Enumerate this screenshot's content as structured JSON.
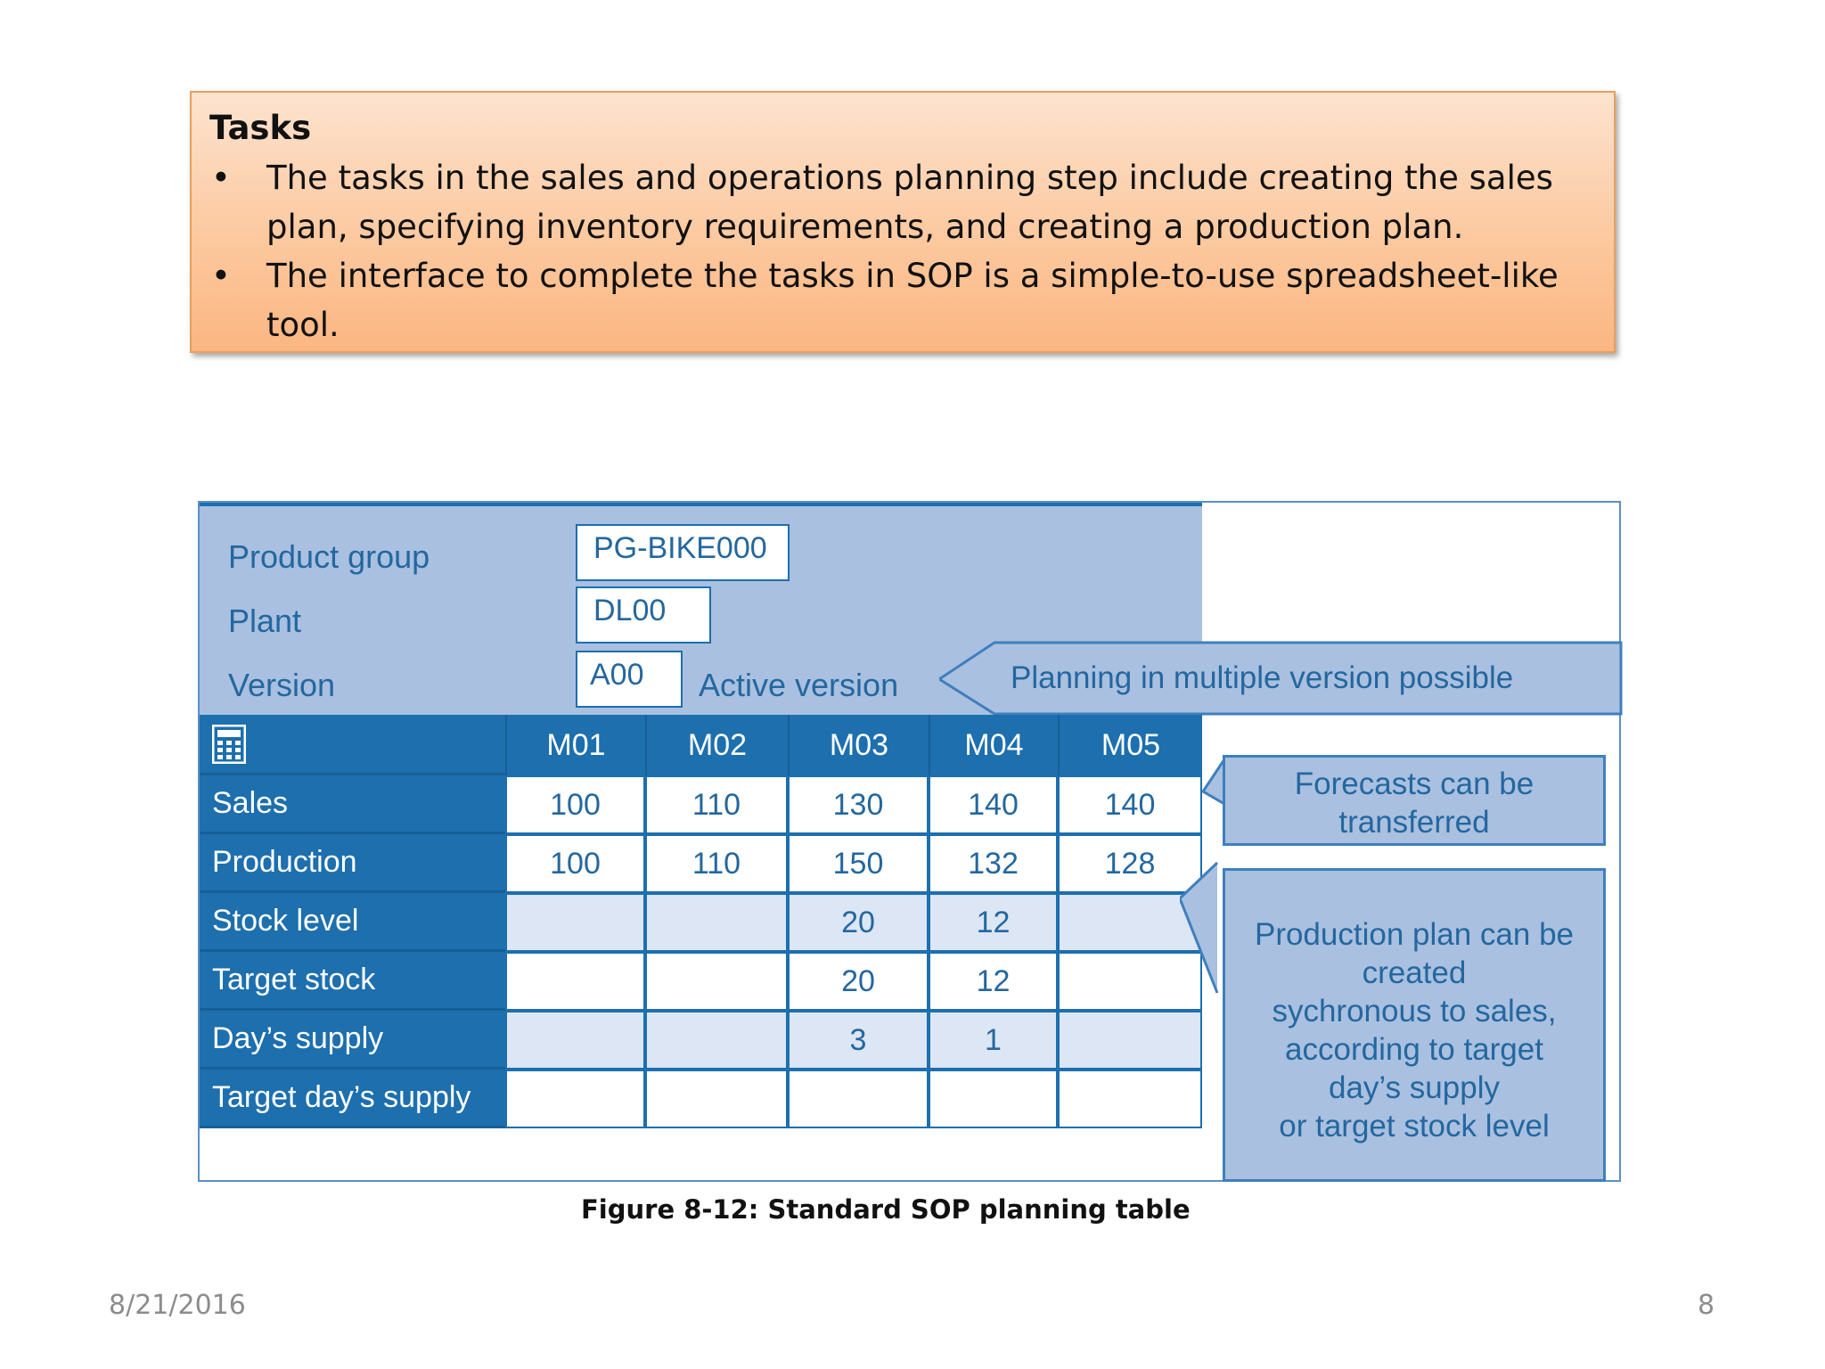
{
  "tasks": {
    "title": "Tasks",
    "bullet_char": "•",
    "items": [
      "The tasks in the sales and operations planning step include creating the sales plan, specifying inventory requirements, and creating a production plan.",
      "The interface to complete the tasks in SOP is a simple-to-use spreadsheet-like tool."
    ]
  },
  "figure": {
    "fields": [
      {
        "label": "Product group",
        "value": "PG-BIKE000"
      },
      {
        "label": "Plant",
        "value": "DL00"
      },
      {
        "label": "Version",
        "value": "A00"
      }
    ],
    "active_version": "Active version",
    "callout_version": "Planning in multiple version possible",
    "calculator_icon": "calculator-icon",
    "columns": [
      "M01",
      "M02",
      "M03",
      "M04",
      "M05"
    ],
    "rows": [
      {
        "label": "Sales",
        "values": [
          "100",
          "110",
          "130",
          "140",
          "140"
        ]
      },
      {
        "label": "Production",
        "values": [
          "100",
          "110",
          "150",
          "132",
          "128"
        ]
      },
      {
        "label": "Stock level",
        "values": [
          "",
          "",
          "20",
          "12",
          ""
        ]
      },
      {
        "label": "Target stock",
        "values": [
          "",
          "",
          "20",
          "12",
          ""
        ]
      },
      {
        "label": "Day’s supply",
        "values": [
          "",
          "",
          "3",
          "1",
          ""
        ]
      },
      {
        "label": "Target day’s supply",
        "values": [
          "",
          "",
          "",
          "",
          ""
        ]
      }
    ],
    "callout_forecast": [
      "Forecasts can be",
      "transferred"
    ],
    "callout_production": [
      "Production plan can be",
      "created",
      "sychronous to sales,",
      "according to target",
      "day’s supply",
      "or target stock level"
    ],
    "colors": {
      "header_blue": "#1d6fae",
      "panel_blue": "#a9c0e0",
      "text_blue": "#24679f",
      "tasks_orange": "#fcc79c"
    }
  },
  "caption": "Figure 8-12: Standard SOP planning table",
  "footer": {
    "date": "8/21/2016",
    "page": "8"
  }
}
